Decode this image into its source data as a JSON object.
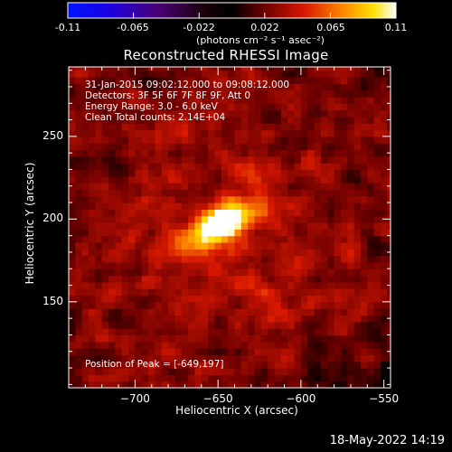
{
  "colorbar": {
    "ticks": [
      "-0.11",
      "-0.065",
      "-0.022",
      "0.022",
      "0.065",
      "0.11"
    ],
    "units": "(photons cm⁻² s⁻¹ asec⁻²)",
    "min": -0.11,
    "max": 0.11,
    "colormap": "red-temperature (blue negative → black → red → yellow → white positive)"
  },
  "annotations": {
    "time": "31-Jan-2015 09:02:12.000 to 09:08:12.000",
    "detectors": "Detectors: 3F 5F 6F 7F 8F 9F, Att 0",
    "energy": "Energy Range: 3.0 - 6.0 keV",
    "clean": "Clean    Total counts: 2.14E+04",
    "peak": "Position of Peak = [-649,197]"
  },
  "footer": {
    "date": "18-May-2022 14:19"
  },
  "chart_data": {
    "type": "heatmap",
    "title": "Reconstructed RHESSI Image",
    "xlabel": "Heliocentric X (arcsec)",
    "ylabel": "Heliocentric Y (arcsec)",
    "xlim": [
      -740,
      -546
    ],
    "ylim": [
      98,
      292
    ],
    "xticks": [
      -700,
      -650,
      -600,
      -550
    ],
    "yticks": [
      150,
      200,
      250
    ],
    "xtick_labels": [
      "−700",
      "−650",
      "−600",
      "−550"
    ],
    "ytick_labels": [
      "150",
      "200",
      "250"
    ],
    "peak": {
      "x": -649,
      "y": 197,
      "value": 0.11
    },
    "grid": false
  }
}
